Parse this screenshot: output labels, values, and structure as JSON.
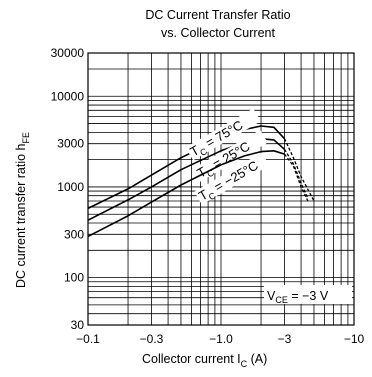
{
  "chart_data": {
    "type": "line",
    "title": "DC Current Transfer Ratio",
    "subtitle": "vs. Collector Current",
    "xlabel": {
      "main": "Collector current  I",
      "sub": "C",
      "unit": "  (A)"
    },
    "ylabel": {
      "main": "DC current transfer ratio  h",
      "sub": "FE"
    },
    "x_scale": "log",
    "y_scale": "log",
    "xlim": [
      -0.1,
      -10
    ],
    "ylim": [
      30,
      30000
    ],
    "x_ticks": [
      "−0.1",
      "−0.3",
      "−1.0",
      "−3",
      "−10"
    ],
    "x_tick_values": [
      0.1,
      0.3,
      1.0,
      3,
      10
    ],
    "y_ticks": [
      "30000",
      "10000",
      "3000",
      "1000",
      "300",
      "100",
      "30"
    ],
    "y_tick_values": [
      30000,
      10000,
      3000,
      1000,
      300,
      100,
      30
    ],
    "grid": true,
    "annotation": {
      "main": "V",
      "sub": "CE",
      "rest": " = −3 V"
    },
    "series": [
      {
        "label": {
          "main": "T",
          "sub": "C",
          "rest": " = 75°C"
        },
        "x": [
          0.1,
          0.2,
          0.3,
          0.5,
          1.0,
          1.5,
          2.0,
          2.5,
          3.0,
          3.5,
          4.0,
          5.0
        ],
        "y": [
          580,
          950,
          1350,
          2100,
          3400,
          4300,
          4700,
          4550,
          3400,
          2100,
          1300,
          700
        ],
        "dashed_from_x": 3.0
      },
      {
        "label": {
          "main": "T",
          "sub": "C",
          "rest": " = 25°C"
        },
        "x": [
          0.1,
          0.2,
          0.3,
          0.5,
          1.0,
          1.5,
          2.0,
          2.5,
          3.0,
          3.5,
          4.0,
          4.5
        ],
        "y": [
          430,
          720,
          1000,
          1550,
          2500,
          3100,
          3400,
          3300,
          2600,
          1800,
          1100,
          750
        ],
        "dashed_from_x": 3.0
      },
      {
        "label": {
          "main": "T",
          "sub": "C",
          "rest": " = −25°C"
        },
        "x": [
          0.1,
          0.2,
          0.3,
          0.5,
          1.0,
          1.5,
          2.0,
          2.5,
          3.0,
          3.5,
          4.0,
          4.5
        ],
        "y": [
          285,
          480,
          680,
          1050,
          1750,
          2200,
          2450,
          2500,
          2300,
          1700,
          1000,
          700
        ],
        "dashed_from_x": 3.0
      }
    ]
  }
}
